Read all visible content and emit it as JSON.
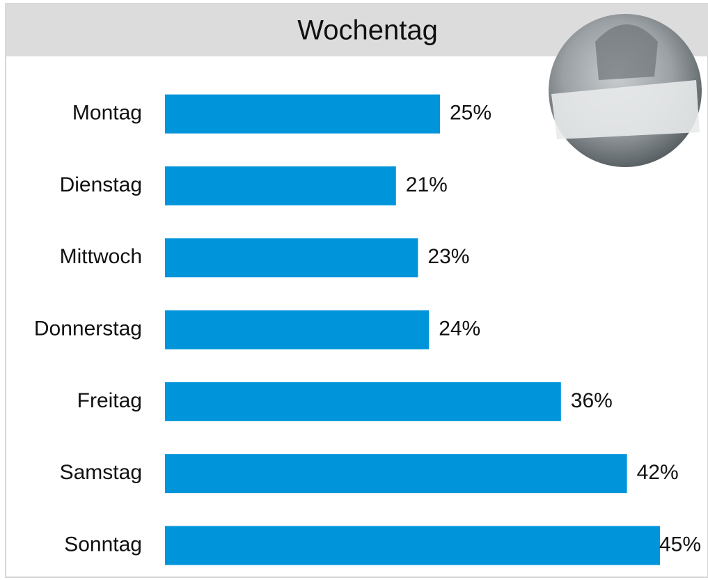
{
  "chart_data": {
    "type": "bar",
    "orientation": "horizontal",
    "title": "Wochentag",
    "categories": [
      "Montag",
      "Dienstag",
      "Mittwoch",
      "Donnerstag",
      "Freitag",
      "Samstag",
      "Sonntag"
    ],
    "values": [
      25,
      21,
      23,
      24,
      36,
      42,
      45
    ],
    "value_labels": [
      "25%",
      "21%",
      "23%",
      "24%",
      "36%",
      "42%",
      "45%"
    ],
    "color": "#0095da"
  }
}
